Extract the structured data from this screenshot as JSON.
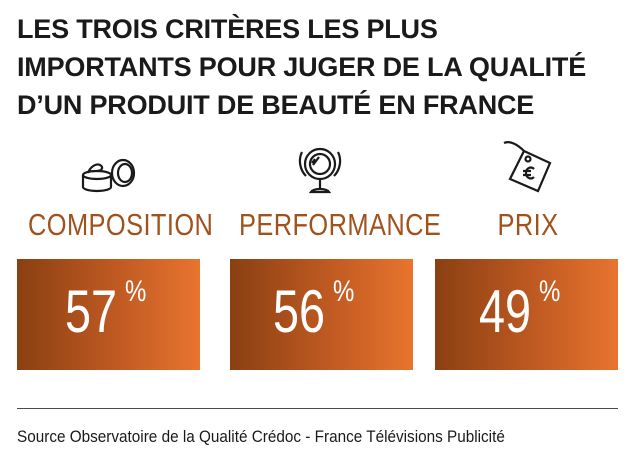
{
  "title": "LES TROIS CRITÈRES LES PLUS IMPORTANTS POUR JUGER DE LA QUALITÉ D’UN PRODUIT DE BEAUTÉ EN FRANCE",
  "percent_sign": "%",
  "chart_data": {
    "type": "bar",
    "categories": [
      "COMPOSITION",
      "PERFORMANCE",
      "PRIX"
    ],
    "values": [
      57,
      56,
      49
    ],
    "unit": "%",
    "icons": [
      "cream-jar-icon",
      "mirror-icon",
      "euro-price-tag-icon"
    ],
    "colors": {
      "label": "#a0521c",
      "box_start": "#8a4012",
      "box_end": "#e8742e"
    }
  },
  "source": "Source Observatoire de la Qualité Crédoc - France Télévisions Publicité"
}
